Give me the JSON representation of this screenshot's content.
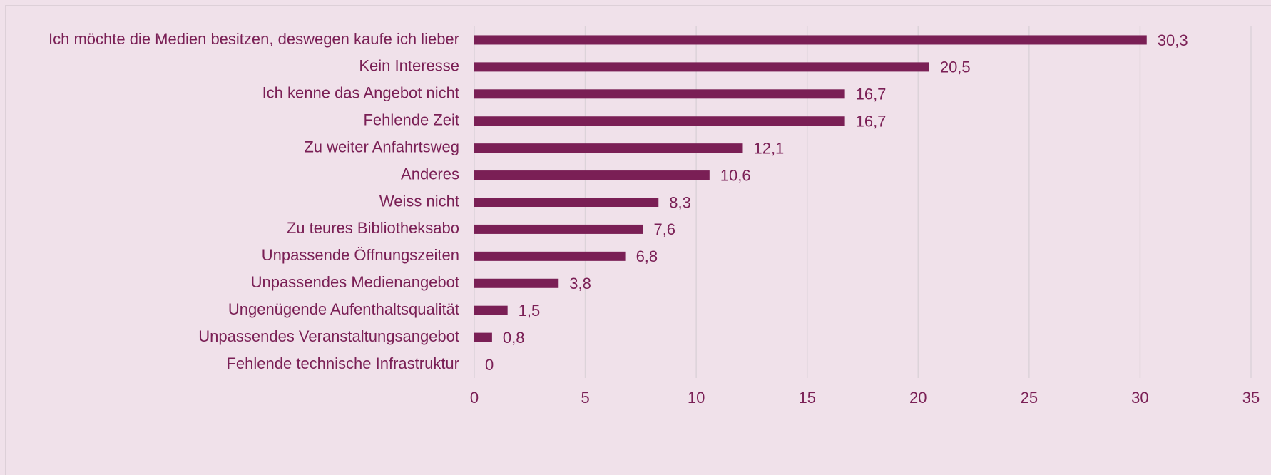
{
  "chart_data": {
    "type": "hbar",
    "categories": [
      "Ich möchte die Medien besitzen, deswegen kaufe ich lieber",
      "Kein Interesse",
      "Ich kenne das Angebot nicht",
      "Fehlende Zeit",
      "Zu weiter Anfahrtsweg",
      "Anderes",
      "Weiss nicht",
      "Zu teures Bibliotheksabo",
      "Unpassende Öffnungszeiten",
      "Unpassendes Medienangebot",
      "Ungenügende Aufenthaltsqualität",
      "Unpassendes Veranstaltungsangebot",
      "Fehlende technische Infrastruktur"
    ],
    "values": [
      30.3,
      20.5,
      16.7,
      16.7,
      12.1,
      10.6,
      8.3,
      7.6,
      6.8,
      3.8,
      1.5,
      0.8,
      0
    ],
    "value_labels": [
      "30,3",
      "20,5",
      "16,7",
      "16,7",
      "12,1",
      "10,6",
      "8,3",
      "7,6",
      "6,8",
      "3,8",
      "1,5",
      "0,8",
      "0"
    ],
    "color": "#7a1f55",
    "xlim": [
      0,
      35
    ],
    "xticks": [
      0,
      5,
      10,
      15,
      20,
      25,
      30,
      35
    ],
    "grid": true
  }
}
